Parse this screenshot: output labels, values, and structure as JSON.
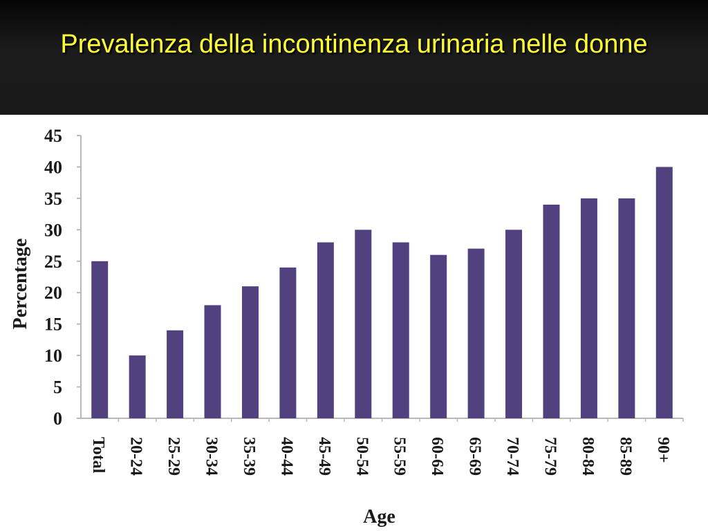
{
  "slide": {
    "title": "Prevalenza della incontinenza urinaria nelle donne"
  },
  "chart_data": {
    "type": "bar",
    "title": "",
    "xlabel": "Age",
    "ylabel": "Percentage",
    "ylim": [
      0,
      45
    ],
    "yticks": [
      0,
      5,
      10,
      15,
      20,
      25,
      30,
      35,
      40,
      45
    ],
    "categories": [
      "Total",
      "20-24",
      "25-29",
      "30-34",
      "35-39",
      "40-44",
      "45-49",
      "50-54",
      "55-59",
      "60-64",
      "65-69",
      "70-74",
      "75-79",
      "80-84",
      "85-89",
      "90+"
    ],
    "values": [
      25,
      10,
      14,
      18,
      21,
      24,
      28,
      30,
      28,
      26,
      27,
      30,
      34,
      35,
      35,
      40
    ],
    "bar_color": "#52417f",
    "grid": false,
    "legend": "none"
  }
}
